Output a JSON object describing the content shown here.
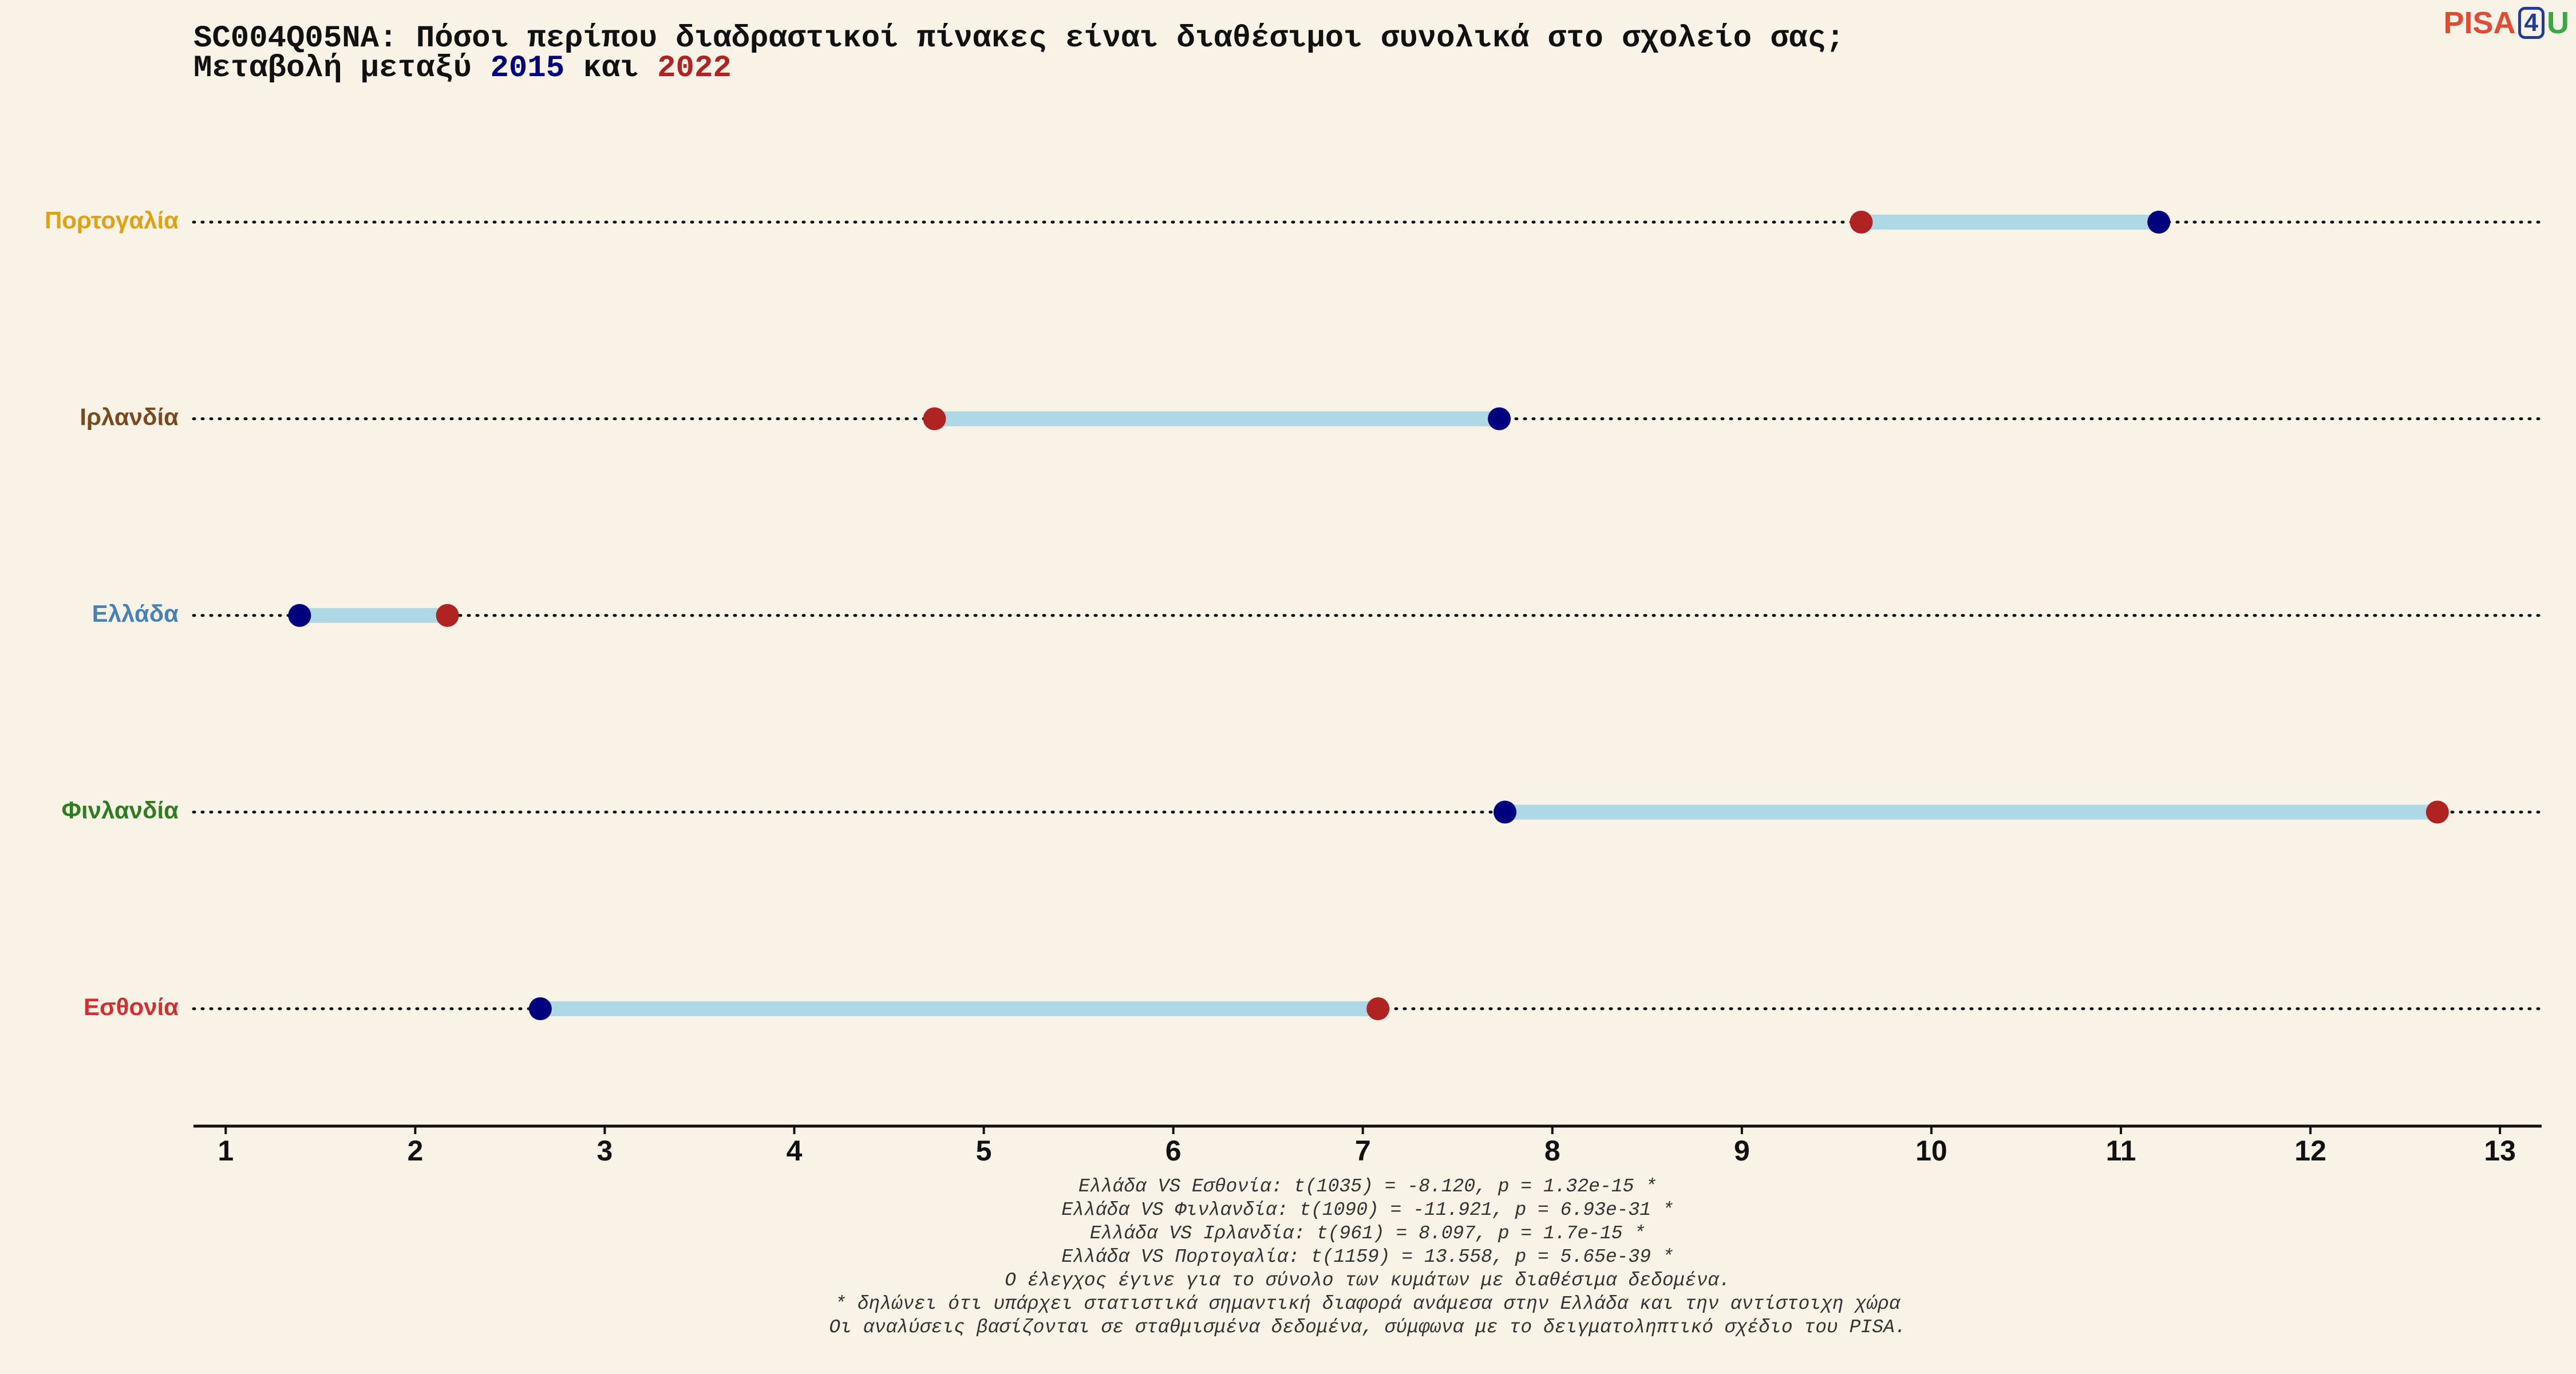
{
  "title": {
    "line1": "SC004Q05NA: Πόσοι περίπου διαδραστικοί πίνακες είναι διαθέσιμοι συνολικά στο σχολείο σας;",
    "line2_prefix": "Μεταβολή μεταξύ ",
    "year_a": "2015",
    "line2_middle": " και ",
    "year_b": "2022"
  },
  "logo": {
    "part1": "PISA",
    "part2": "4",
    "part3": "U"
  },
  "colors": {
    "background": "#f8f3e6",
    "year_2015": "#00007f",
    "year_2022": "#b02323",
    "connector": "#add8e6"
  },
  "chart_data": {
    "type": "dumbbell",
    "xlim": [
      0.83,
      13.22
    ],
    "x_ticks": [
      1,
      2,
      3,
      4,
      5,
      6,
      7,
      8,
      9,
      10,
      11,
      12,
      13
    ],
    "grid": "dotted row lines",
    "series": [
      {
        "name": "2015",
        "color": "#00007f"
      },
      {
        "name": "2022",
        "color": "#b02323"
      }
    ],
    "rows": [
      {
        "country": "Πορτογαλία",
        "label_color": "#e0a010",
        "v2015": 11.2,
        "v2022": 9.63
      },
      {
        "country": "Ιρλανδία",
        "label_color": "#7a4a1e",
        "v2015": 7.72,
        "v2022": 4.74
      },
      {
        "country": "Ελλάδα",
        "label_color": "#4682b4",
        "v2015": 1.39,
        "v2022": 2.17
      },
      {
        "country": "Φινλανδία",
        "label_color": "#2e7d1e",
        "v2015": 7.75,
        "v2022": 12.67
      },
      {
        "country": "Εσθονία",
        "label_color": "#d32f2f",
        "v2015": 2.66,
        "v2022": 7.08
      }
    ]
  },
  "notes": [
    "Ελλάδα VS Εσθονία: t(1035) = -8.120, p = 1.32e-15 *",
    "Ελλάδα VS Φινλανδία: t(1090) = -11.921, p = 6.93e-31 *",
    "Ελλάδα VS Ιρλανδία: t(961) = 8.097, p = 1.7e-15 *",
    "Ελλάδα VS Πορτογαλία: t(1159) = 13.558, p = 5.65e-39 *",
    "Ο έλεγχος έγινε για το σύνολο των κυμάτων με διαθέσιμα δεδομένα.",
    "* δηλώνει ότι υπάρχει στατιστικά σημαντική διαφορά ανάμεσα στην Ελλάδα και την αντίστοιχη χώρα",
    "Οι αναλύσεις βασίζονται σε σταθμισμένα δεδομένα, σύμφωνα με το δειγματοληπτικό σχέδιο του PISA."
  ]
}
